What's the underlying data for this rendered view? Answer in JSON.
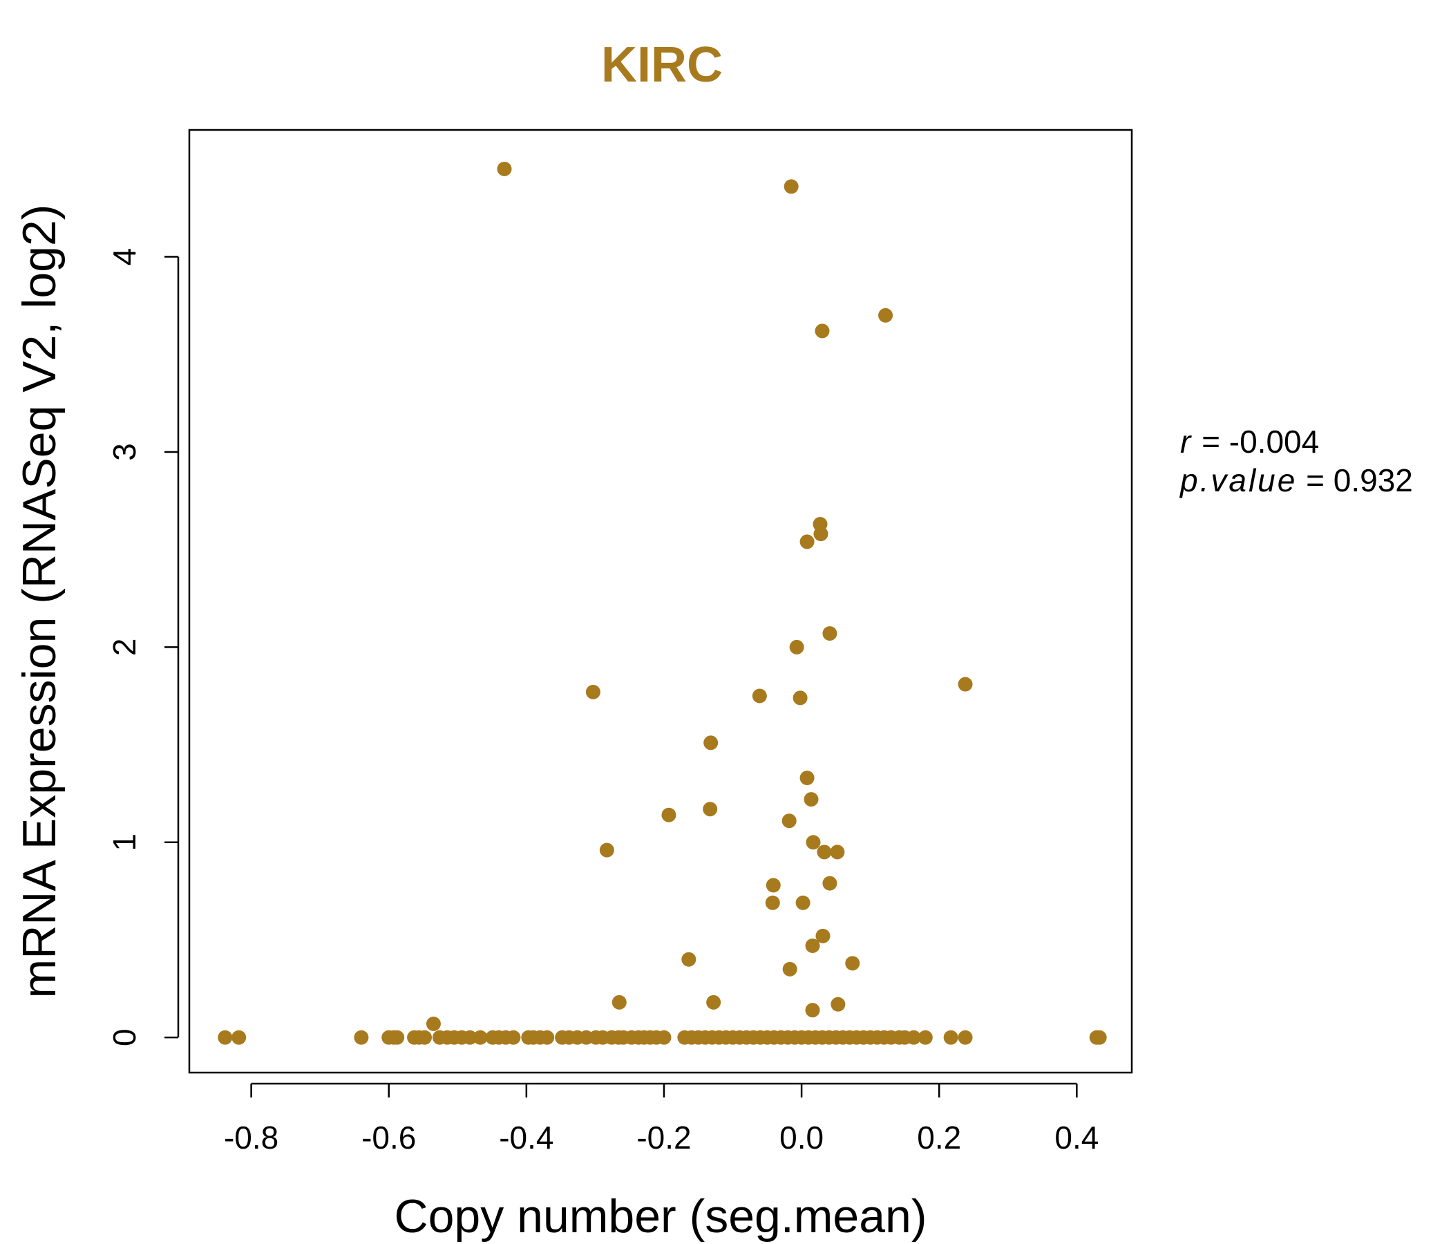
{
  "chart_data": {
    "type": "scatter",
    "title": "KIRC",
    "xlabel": "Copy number (seg.mean)",
    "ylabel": "mRNA Expression (RNASeq V2, log2)",
    "xlim": [
      -0.89,
      0.48
    ],
    "ylim": [
      -0.18,
      4.65
    ],
    "xticks": [
      "-0.8",
      "-0.6",
      "-0.4",
      "-0.2",
      "0.0",
      "0.2",
      "0.4"
    ],
    "yticks": [
      "0",
      "1",
      "2",
      "3",
      "4"
    ],
    "grid": false,
    "colors": {
      "points": "#A87A1E",
      "title": "#A87A1E",
      "axes": "#000000"
    },
    "stats": {
      "r_label": "r",
      "r_value": "-0.004",
      "p_label": "p.value",
      "p_value": "0.932"
    },
    "points": [
      [
        -0.432,
        4.45
      ],
      [
        -0.015,
        4.36
      ],
      [
        0.122,
        3.7
      ],
      [
        0.03,
        3.62
      ],
      [
        0.027,
        2.63
      ],
      [
        0.028,
        2.58
      ],
      [
        0.008,
        2.54
      ],
      [
        0.041,
        2.07
      ],
      [
        -0.007,
        2.0
      ],
      [
        0.238,
        1.81
      ],
      [
        -0.303,
        1.77
      ],
      [
        -0.061,
        1.75
      ],
      [
        -0.002,
        1.74
      ],
      [
        -0.132,
        1.51
      ],
      [
        0.008,
        1.33
      ],
      [
        0.014,
        1.22
      ],
      [
        -0.133,
        1.17
      ],
      [
        -0.193,
        1.14
      ],
      [
        -0.018,
        1.11
      ],
      [
        0.017,
        1.0
      ],
      [
        -0.283,
        0.96
      ],
      [
        0.052,
        0.95
      ],
      [
        0.033,
        0.95
      ],
      [
        0.041,
        0.79
      ],
      [
        -0.041,
        0.78
      ],
      [
        -0.042,
        0.69
      ],
      [
        0.002,
        0.69
      ],
      [
        0.031,
        0.52
      ],
      [
        0.016,
        0.47
      ],
      [
        -0.164,
        0.4
      ],
      [
        0.074,
        0.38
      ],
      [
        -0.017,
        0.35
      ],
      [
        -0.265,
        0.18
      ],
      [
        -0.128,
        0.18
      ],
      [
        0.053,
        0.17
      ],
      [
        0.016,
        0.14
      ],
      [
        -0.535,
        0.07
      ],
      [
        -0.838,
        0
      ],
      [
        -0.818,
        0
      ],
      [
        -0.64,
        0
      ],
      [
        -0.6,
        0
      ],
      [
        -0.593,
        0
      ],
      [
        -0.588,
        0
      ],
      [
        -0.563,
        0
      ],
      [
        -0.556,
        0
      ],
      [
        -0.548,
        0
      ],
      [
        -0.526,
        0
      ],
      [
        -0.515,
        0
      ],
      [
        -0.505,
        0
      ],
      [
        -0.494,
        0
      ],
      [
        -0.482,
        0
      ],
      [
        -0.467,
        0
      ],
      [
        -0.449,
        0
      ],
      [
        -0.44,
        0
      ],
      [
        -0.43,
        0
      ],
      [
        -0.419,
        0
      ],
      [
        -0.397,
        0
      ],
      [
        -0.39,
        0
      ],
      [
        -0.38,
        0
      ],
      [
        -0.37,
        0
      ],
      [
        -0.348,
        0
      ],
      [
        -0.338,
        0
      ],
      [
        -0.326,
        0
      ],
      [
        -0.313,
        0
      ],
      [
        -0.299,
        0
      ],
      [
        -0.289,
        0
      ],
      [
        -0.276,
        0
      ],
      [
        -0.266,
        0
      ],
      [
        -0.259,
        0
      ],
      [
        -0.247,
        0
      ],
      [
        -0.237,
        0
      ],
      [
        -0.229,
        0
      ],
      [
        -0.22,
        0
      ],
      [
        -0.211,
        0
      ],
      [
        -0.2,
        0
      ],
      [
        -0.17,
        0
      ],
      [
        -0.16,
        0
      ],
      [
        -0.15,
        0
      ],
      [
        -0.14,
        0
      ],
      [
        -0.13,
        0
      ],
      [
        -0.12,
        0
      ],
      [
        -0.11,
        0
      ],
      [
        -0.1,
        0
      ],
      [
        -0.09,
        0
      ],
      [
        -0.08,
        0
      ],
      [
        -0.07,
        0
      ],
      [
        -0.06,
        0
      ],
      [
        -0.05,
        0
      ],
      [
        -0.04,
        0
      ],
      [
        -0.03,
        0
      ],
      [
        -0.02,
        0
      ],
      [
        -0.01,
        0
      ],
      [
        0.0,
        0
      ],
      [
        0.01,
        0
      ],
      [
        0.02,
        0
      ],
      [
        0.03,
        0
      ],
      [
        0.04,
        0
      ],
      [
        0.05,
        0
      ],
      [
        0.06,
        0
      ],
      [
        0.07,
        0
      ],
      [
        0.08,
        0
      ],
      [
        0.09,
        0
      ],
      [
        0.1,
        0
      ],
      [
        0.11,
        0
      ],
      [
        0.12,
        0
      ],
      [
        0.13,
        0
      ],
      [
        0.142,
        0
      ],
      [
        0.15,
        0
      ],
      [
        0.163,
        0
      ],
      [
        0.18,
        0
      ],
      [
        0.217,
        0
      ],
      [
        0.238,
        0
      ],
      [
        0.429,
        0
      ],
      [
        0.433,
        0
      ]
    ]
  }
}
